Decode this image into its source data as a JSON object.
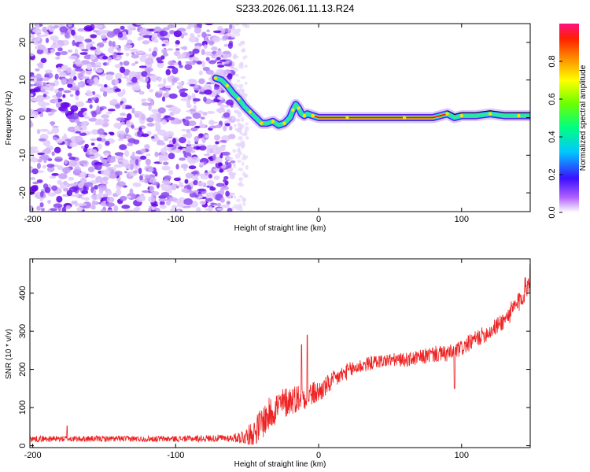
{
  "title": "S233.2026.061.11.13.R24",
  "colors": {
    "snr_line": "#ee2222",
    "ridge_low": "#7a2cff",
    "frame": "#000000"
  },
  "chart_data": [
    {
      "type": "heatmap",
      "xlabel": "Height of straight line (km)",
      "ylabel": "Frequency (Hz)",
      "xlim": [
        -202,
        148
      ],
      "ylim": [
        -25,
        25
      ],
      "xticks": [
        -200,
        -100,
        0,
        100
      ],
      "xtick_labels": [
        "-200",
        "-100",
        "0",
        "100"
      ],
      "yticks": [
        -20,
        -10,
        0,
        10,
        20
      ],
      "ytick_labels": [
        "-20",
        "-10",
        "0",
        "10",
        "20"
      ],
      "noise_region_x": [
        -202,
        -60
      ],
      "ridge": {
        "x": [
          -72,
          -68,
          -64,
          -60,
          -56,
          -52,
          -48,
          -44,
          -40,
          -36,
          -32,
          -28,
          -24,
          -20,
          -18,
          -16,
          -14,
          -12,
          -10,
          -8,
          -4,
          0,
          20,
          40,
          60,
          80,
          90,
          95,
          100,
          110,
          120,
          130,
          140,
          148
        ],
        "y": [
          10.5,
          10,
          8.5,
          6.5,
          5,
          3,
          1.5,
          0,
          -1.5,
          -1.5,
          -1,
          -2,
          -1.5,
          0,
          2,
          3.5,
          2.5,
          1,
          0.5,
          1,
          0.5,
          0,
          0,
          0,
          0,
          0,
          1,
          0,
          0.5,
          0.5,
          1,
          0.5,
          0.5,
          0.5
        ]
      },
      "colorbar": {
        "label": "Normalized spectral amplitude",
        "range": [
          0,
          1
        ],
        "ticks": [
          0.0,
          0.2,
          0.4,
          0.6,
          0.8
        ],
        "tick_labels": [
          "0.0",
          "0.2",
          "0.4",
          "0.6",
          "0.8"
        ]
      }
    },
    {
      "type": "line",
      "xlabel": "Height of straight line (km)",
      "ylabel": "SNR (10 * v/v)",
      "xlim": [
        -202,
        148
      ],
      "ylim": [
        -5,
        490
      ],
      "xticks": [
        -200,
        -100,
        0,
        100
      ],
      "xtick_labels": [
        "-200",
        "-100",
        "0",
        "100"
      ],
      "yticks": [
        0,
        100,
        200,
        300,
        400
      ],
      "ytick_labels": [
        "0",
        "100",
        "200",
        "300",
        "400"
      ],
      "series": [
        {
          "trend_x": [
            -202,
            -100,
            -60,
            -50,
            -45,
            -40,
            -30,
            -20,
            -10,
            0,
            10,
            20,
            30,
            40,
            50,
            60,
            70,
            80,
            90,
            100,
            110,
            120,
            130,
            140,
            148
          ],
          "trend_y": [
            18,
            18,
            20,
            25,
            35,
            60,
            100,
            120,
            130,
            140,
            170,
            195,
            210,
            220,
            225,
            225,
            230,
            240,
            240,
            255,
            280,
            300,
            330,
            375,
            440
          ],
          "noise_amplitude": [
            8,
            8,
            10,
            25,
            35,
            45,
            45,
            40,
            35,
            30,
            25,
            22,
            20,
            18,
            18,
            18,
            20,
            22,
            22,
            22,
            22,
            22,
            25,
            30,
            35
          ],
          "spikes": [
            {
              "x": -8,
              "y": 290
            },
            {
              "x": -12,
              "y": 265
            },
            {
              "x": 95,
              "y": 150
            },
            {
              "x": 148,
              "y": 475
            },
            {
              "x": -176,
              "y": 52
            }
          ]
        }
      ]
    }
  ]
}
